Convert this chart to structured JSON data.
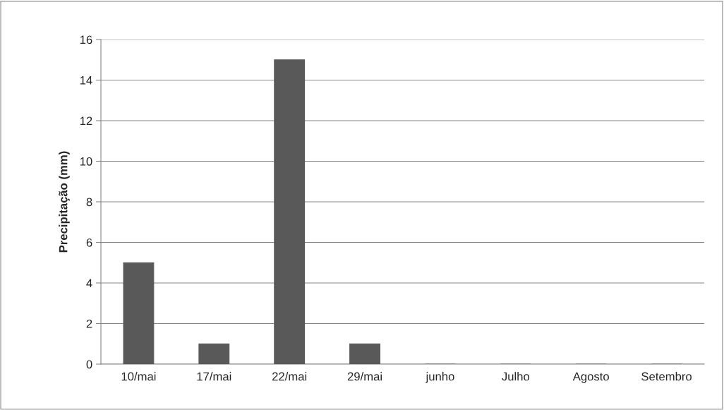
{
  "chart_data": {
    "type": "bar",
    "ylabel": "Precipitação (mm)",
    "categories": [
      "10/mai",
      "17/mai",
      "22/mai",
      "29/mai",
      "junho",
      "Julho",
      "Agosto",
      "Setembro"
    ],
    "values": [
      5,
      1,
      15,
      1,
      0,
      0,
      0,
      0
    ],
    "color": "#595959",
    "ylim": [
      0,
      16
    ],
    "yticks": [
      0,
      2,
      4,
      6,
      8,
      10,
      12,
      14,
      16
    ],
    "grid": "y",
    "legend": false
  }
}
